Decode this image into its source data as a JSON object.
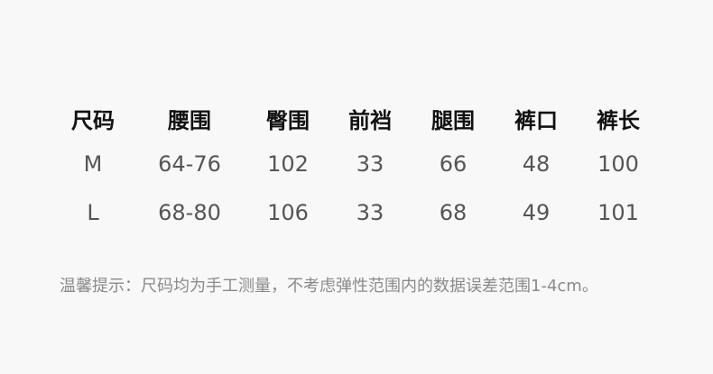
{
  "table": {
    "headers": [
      "尺码",
      "腰围",
      "臀围",
      "前裆",
      "腿围",
      "裤口",
      "裤长"
    ],
    "rows": [
      [
        "M",
        "64-76",
        "102",
        "33",
        "66",
        "48",
        "100"
      ],
      [
        "L",
        "68-80",
        "106",
        "33",
        "68",
        "49",
        "101"
      ]
    ]
  },
  "note": "温馨提示：尺码均为手工测量，不考虑弹性范围内的数据误差范围1-4cm。",
  "colors": {
    "background": "#f8f8f8",
    "header_text": "#111111",
    "value_text": "#555555",
    "note_text": "#8a8a8a"
  }
}
